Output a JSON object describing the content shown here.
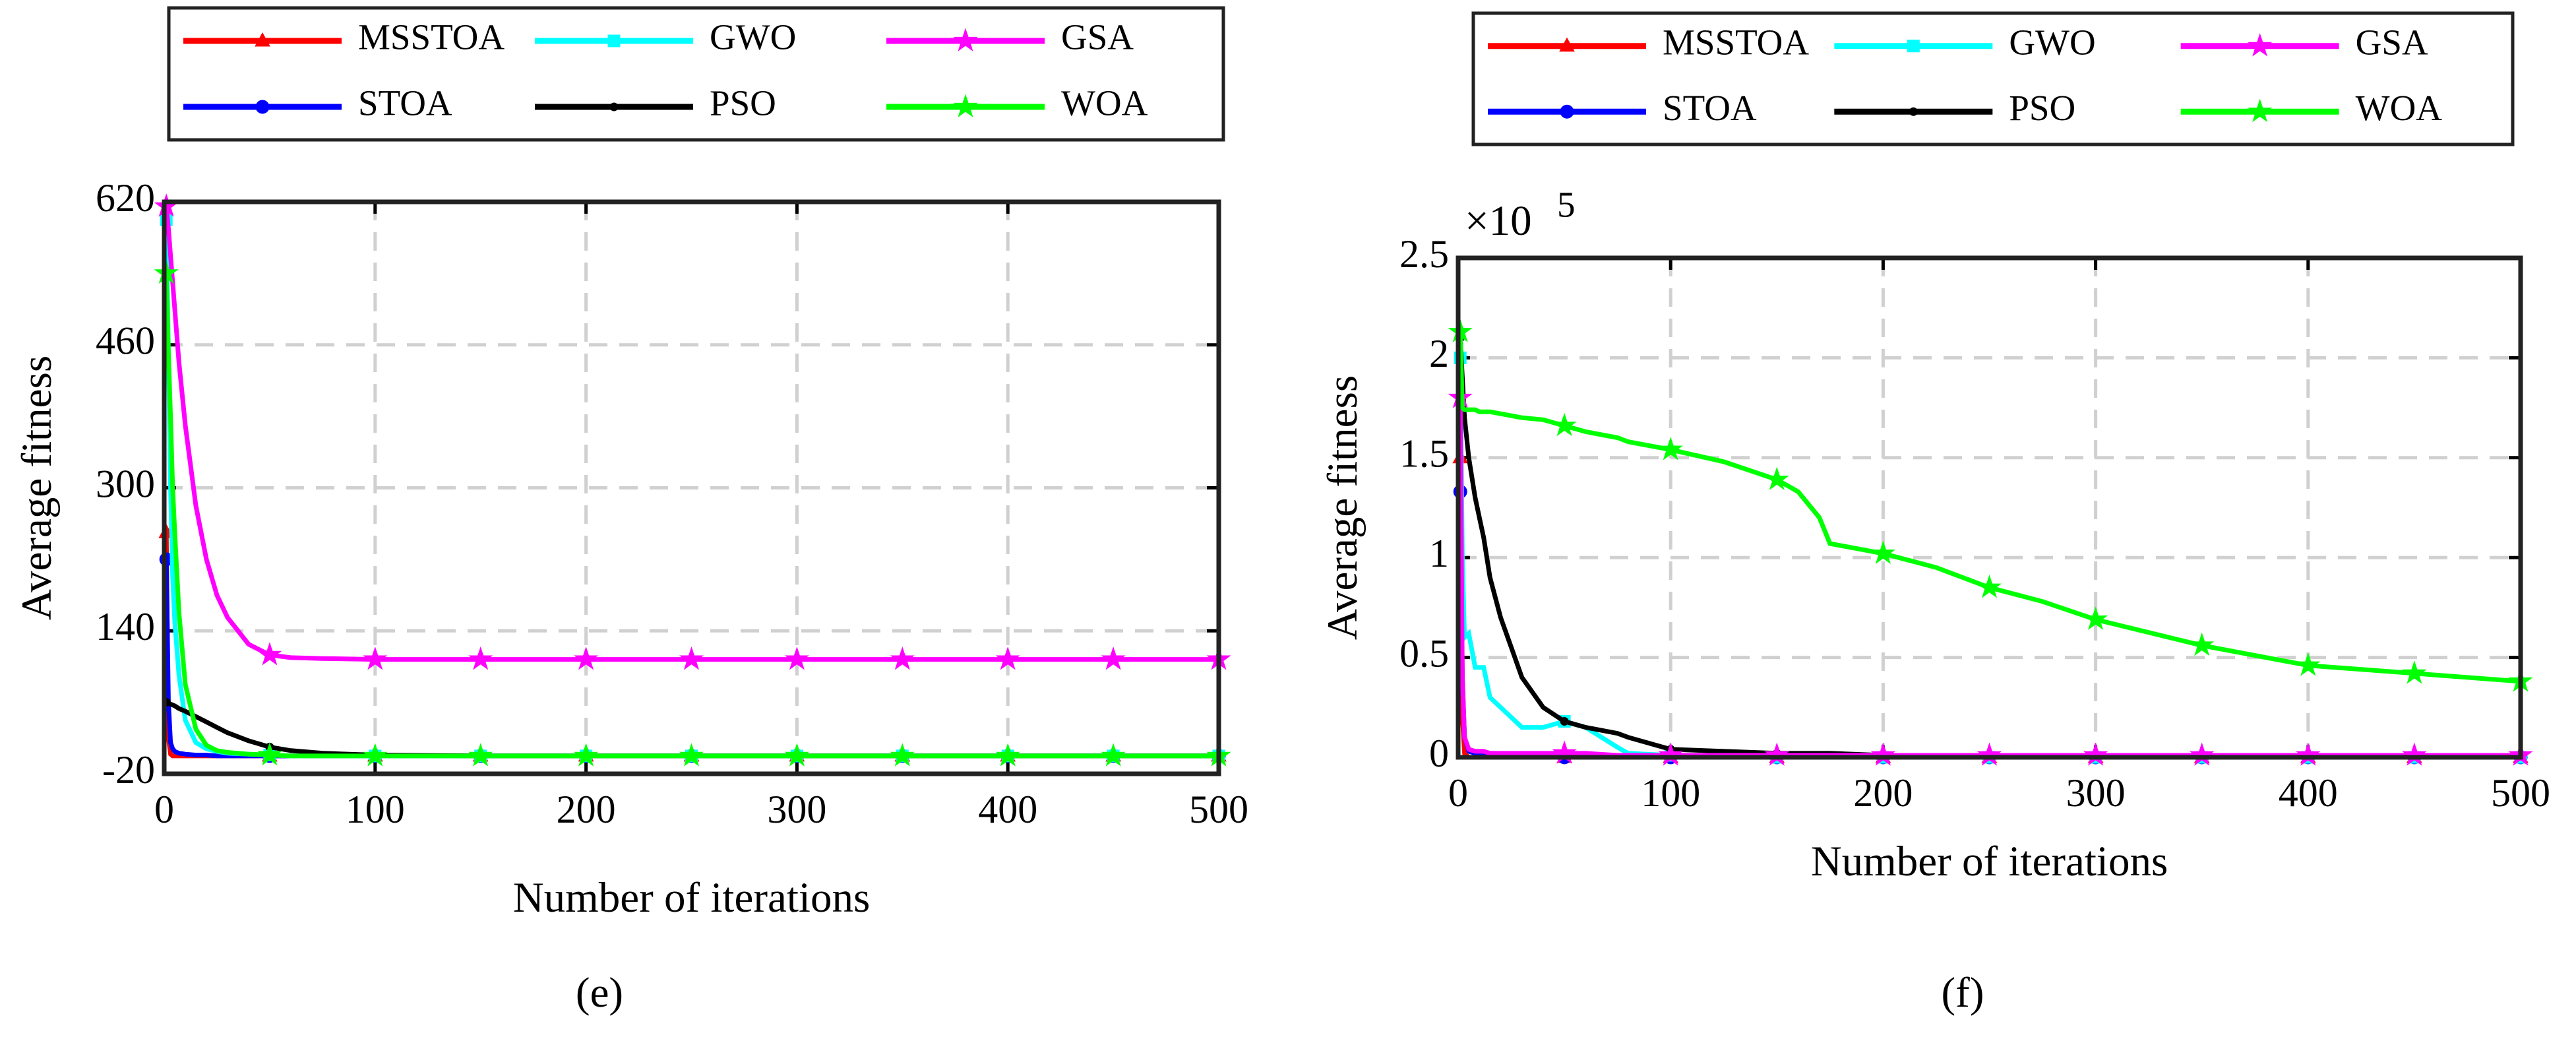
{
  "chart_data": [
    {
      "type": "line",
      "caption": "(e)",
      "xlabel": "Number of iterations",
      "ylabel": "Average fitness",
      "xlim": [
        0,
        500
      ],
      "xticks": [
        0,
        100,
        200,
        300,
        400,
        500
      ],
      "ylim": [
        -20,
        620
      ],
      "yticks": [
        -20,
        140,
        300,
        460,
        620
      ],
      "grid": true,
      "x": [
        1,
        2,
        3,
        4,
        5,
        7,
        10,
        15,
        20,
        25,
        30,
        40,
        50,
        60,
        75,
        100,
        150,
        200,
        250,
        300,
        350,
        400,
        450,
        500
      ],
      "series": [
        {
          "name": "MSSTOA",
          "color": "#ff0000",
          "marker": "triangle",
          "values": [
            250,
            20,
            2,
            0,
            0,
            0,
            0,
            0,
            0,
            0,
            0,
            0,
            0,
            0,
            0,
            0,
            0,
            0,
            0,
            0,
            0,
            0,
            0,
            0
          ]
        },
        {
          "name": "STOA",
          "color": "#0000ff",
          "marker": "circle",
          "values": [
            220,
            60,
            15,
            8,
            5,
            3,
            2,
            1,
            1,
            0,
            0,
            0,
            0,
            0,
            0,
            0,
            0,
            0,
            0,
            0,
            0,
            0,
            0,
            0
          ]
        },
        {
          "name": "GWO",
          "color": "#00ffff",
          "marker": "square",
          "values": [
            600,
            450,
            300,
            200,
            150,
            90,
            40,
            15,
            8,
            5,
            3,
            2,
            1,
            0,
            0,
            0,
            0,
            0,
            0,
            0,
            0,
            0,
            0,
            0
          ]
        },
        {
          "name": "PSO",
          "color": "#000000",
          "marker": "dot",
          "values": [
            60,
            59,
            58,
            57,
            56,
            53,
            50,
            44,
            38,
            32,
            26,
            17,
            10,
            6,
            3,
            1,
            0,
            0,
            0,
            0,
            0,
            0,
            0,
            0
          ]
        },
        {
          "name": "GSA",
          "color": "#ff00ff",
          "marker": "star",
          "values": [
            615,
            590,
            560,
            530,
            500,
            440,
            370,
            280,
            220,
            180,
            155,
            125,
            113,
            110,
            109,
            108,
            108,
            108,
            108,
            108,
            108,
            108,
            108,
            108
          ]
        },
        {
          "name": "WOA",
          "color": "#00ff00",
          "marker": "star",
          "values": [
            540,
            450,
            380,
            300,
            250,
            160,
            80,
            30,
            12,
            6,
            4,
            2,
            1,
            0,
            0,
            0,
            0,
            0,
            0,
            0,
            0,
            0,
            0,
            0
          ]
        }
      ]
    },
    {
      "type": "line",
      "caption": "(f)",
      "xlabel": "Number of iterations",
      "ylabel": "Average fitness",
      "y_scale_label": "×10",
      "y_scale_exponent": 5,
      "xlim": [
        0,
        500
      ],
      "xticks": [
        0,
        100,
        200,
        300,
        400,
        500
      ],
      "ylim": [
        0,
        2.5
      ],
      "yticks": [
        0,
        0.5,
        1,
        1.5,
        2,
        2.5
      ],
      "grid": true,
      "x": [
        1,
        2,
        3,
        5,
        8,
        10,
        12,
        15,
        20,
        25,
        30,
        40,
        50,
        60,
        75,
        80,
        100,
        125,
        150,
        160,
        170,
        175,
        200,
        225,
        250,
        275,
        300,
        350,
        400,
        450,
        500
      ],
      "series": [
        {
          "name": "MSSTOA",
          "color": "#ff0000",
          "marker": "triangle",
          "values": [
            1.5,
            0.2,
            0.02,
            0,
            0,
            0,
            0,
            0,
            0,
            0,
            0,
            0,
            0,
            0,
            0,
            0,
            0,
            0,
            0,
            0,
            0,
            0,
            0,
            0,
            0,
            0,
            0,
            0,
            0,
            0,
            0
          ]
        },
        {
          "name": "STOA",
          "color": "#0000ff",
          "marker": "circle",
          "values": [
            1.33,
            0.4,
            0.1,
            0.03,
            0.02,
            0.02,
            0.01,
            0.01,
            0.01,
            0,
            0,
            0,
            0,
            0,
            0,
            0,
            0,
            0,
            0,
            0,
            0,
            0,
            0,
            0,
            0,
            0,
            0,
            0,
            0,
            0,
            0
          ]
        },
        {
          "name": "GWO",
          "color": "#00ffff",
          "marker": "square",
          "values": [
            2.0,
            1.0,
            0.6,
            0.62,
            0.45,
            0.45,
            0.45,
            0.3,
            0.25,
            0.2,
            0.15,
            0.15,
            0.18,
            0.15,
            0.05,
            0.02,
            0.01,
            0,
            0,
            0,
            0,
            0,
            0,
            0,
            0,
            0,
            0,
            0,
            0,
            0,
            0
          ]
        },
        {
          "name": "PSO",
          "color": "#000000",
          "marker": "dot",
          "values": [
            2.1,
            1.9,
            1.7,
            1.5,
            1.3,
            1.2,
            1.1,
            0.9,
            0.7,
            0.55,
            0.4,
            0.25,
            0.18,
            0.15,
            0.12,
            0.1,
            0.04,
            0.03,
            0.02,
            0.02,
            0.02,
            0.02,
            0.01,
            0.01,
            0.01,
            0.01,
            0.01,
            0.01,
            0.01,
            0.01,
            0.01
          ]
        },
        {
          "name": "GSA",
          "color": "#ff00ff",
          "marker": "star",
          "values": [
            1.8,
            0.4,
            0.1,
            0.04,
            0.03,
            0.03,
            0.03,
            0.02,
            0.02,
            0.02,
            0.02,
            0.02,
            0.02,
            0.02,
            0.01,
            0.01,
            0.01,
            0.01,
            0.01,
            0.01,
            0.01,
            0.01,
            0.01,
            0.01,
            0.01,
            0.01,
            0.01,
            0.01,
            0.01,
            0.01,
            0.01
          ]
        },
        {
          "name": "WOA",
          "color": "#00ff00",
          "marker": "star",
          "values": [
            2.13,
            1.75,
            1.74,
            1.74,
            1.74,
            1.73,
            1.73,
            1.73,
            1.72,
            1.71,
            1.7,
            1.69,
            1.66,
            1.63,
            1.6,
            1.58,
            1.54,
            1.48,
            1.39,
            1.33,
            1.2,
            1.07,
            1.02,
            0.95,
            0.85,
            0.78,
            0.69,
            0.56,
            0.46,
            0.42,
            0.38
          ]
        }
      ]
    }
  ]
}
